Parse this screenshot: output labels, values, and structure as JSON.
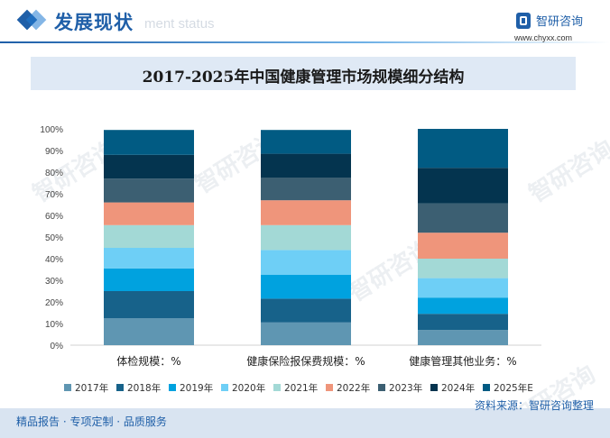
{
  "header": {
    "title": "发展现状",
    "subtitle": "ment status"
  },
  "logo": {
    "name": "智研咨询",
    "url": "www.chyxx.com"
  },
  "watermark_text": "智研咨询",
  "footer": {
    "left": "精品报告 · 专项定制 · 品质服务",
    "right": "资料来源：智研咨询整理"
  },
  "colors": {
    "accent": "#1f5fa8",
    "band": "#dfe9f5"
  },
  "chart_data": {
    "type": "bar",
    "stacked": true,
    "title": "2017-2025年中国健康管理市场规模细分结构",
    "categories": [
      "体检规模：%",
      "健康保险报保费规模：%",
      "健康管理其他业务：%"
    ],
    "ylim": [
      0,
      100
    ],
    "yticks": [
      "0%",
      "10%",
      "20%",
      "30%",
      "40%",
      "50%",
      "60%",
      "70%",
      "80%",
      "90%",
      "100%"
    ],
    "legend_position": "bottom",
    "series": [
      {
        "name": "2017年",
        "color": "#5f96b2",
        "values": [
          12.5,
          10.5,
          7.0
        ]
      },
      {
        "name": "2018年",
        "color": "#17628a",
        "values": [
          12.5,
          11.0,
          7.5
        ]
      },
      {
        "name": "2019年",
        "color": "#00a2df",
        "values": [
          10.5,
          11.0,
          7.5
        ]
      },
      {
        "name": "2020年",
        "color": "#6ecff6",
        "values": [
          9.5,
          11.5,
          9.0
        ]
      },
      {
        "name": "2021年",
        "color": "#a3d9d6",
        "values": [
          10.5,
          11.5,
          9.0
        ]
      },
      {
        "name": "2022年",
        "color": "#ef957b",
        "values": [
          10.5,
          11.5,
          12.0
        ]
      },
      {
        "name": "2023年",
        "color": "#3c5f72",
        "values": [
          11.0,
          10.5,
          13.5
        ]
      },
      {
        "name": "2024年",
        "color": "#04344f",
        "values": [
          11.0,
          11.0,
          16.5
        ]
      },
      {
        "name": "2025年E",
        "color": "#015b83",
        "values": [
          11.5,
          11.0,
          18.0
        ]
      }
    ]
  }
}
